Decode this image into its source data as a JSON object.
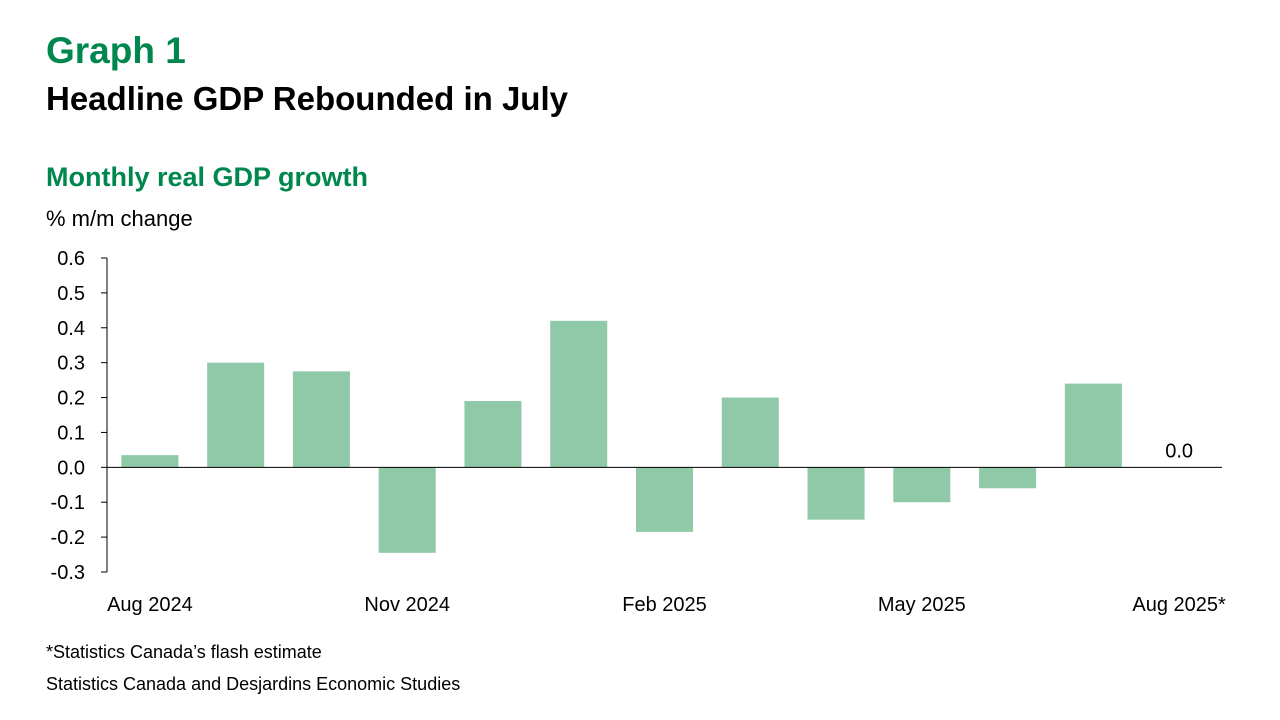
{
  "header": {
    "graph_label": "Graph 1",
    "title": "Headline GDP Rebounded in July"
  },
  "chart_data": {
    "type": "bar",
    "title": "Monthly real GDP growth",
    "ylabel": "% m/m change",
    "xlabel": "",
    "categories": [
      "Aug 2024",
      "Sep 2024",
      "Oct 2024",
      "Nov 2024",
      "Dec 2024",
      "Jan 2025",
      "Feb 2025",
      "Mar 2025",
      "Apr 2025",
      "May 2025",
      "Jun 2025",
      "Jul 2025",
      "Aug 2025*"
    ],
    "values": [
      0.035,
      0.3,
      0.275,
      -0.245,
      0.19,
      0.42,
      -0.185,
      0.2,
      -0.15,
      -0.1,
      -0.06,
      0.24,
      0.0
    ],
    "x_tick_labels": [
      {
        "index": 0,
        "label": "Aug 2024"
      },
      {
        "index": 3,
        "label": "Nov 2024"
      },
      {
        "index": 6,
        "label": "Feb 2025"
      },
      {
        "index": 9,
        "label": "May 2025"
      },
      {
        "index": 12,
        "label": "Aug 2025*"
      }
    ],
    "y_ticks": [
      "0.6",
      "0.5",
      "0.4",
      "0.3",
      "0.2",
      "0.1",
      "0.0",
      "-0.1",
      "-0.2",
      "-0.3"
    ],
    "ylim": [
      -0.3,
      0.6
    ],
    "data_labels": [
      {
        "index": 12,
        "label": "0.0"
      }
    ],
    "bar_color": "#8fc9a8",
    "grid": false,
    "legend": "none"
  },
  "footer": {
    "footnote": "*Statistics Canada’s flash estimate",
    "source": "Statistics Canada and Desjardins Economic Studies"
  }
}
